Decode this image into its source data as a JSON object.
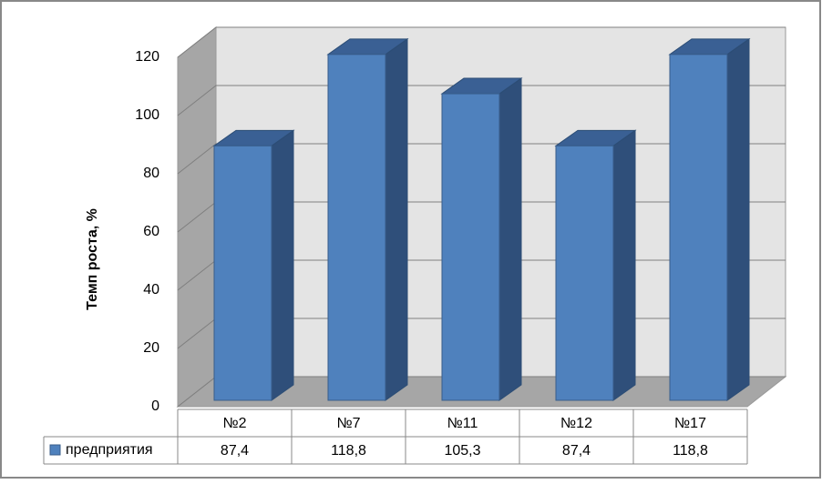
{
  "chart_data": {
    "type": "bar3d",
    "y_axis_label": "Темп роста, %",
    "categories": [
      "№2",
      "№7",
      "№11",
      "№12",
      "№17"
    ],
    "series": [
      {
        "name": "предприятия",
        "color": "#4f81bd",
        "values": [
          87.4,
          118.8,
          105.3,
          87.4,
          118.8
        ],
        "value_labels": [
          "87,4",
          "118,8",
          "105,3",
          "87,4",
          "118,8"
        ]
      }
    ],
    "ylim": [
      0,
      120
    ],
    "yticks": [
      0,
      20,
      40,
      60,
      80,
      100,
      120
    ],
    "grid": true,
    "data_table": true
  }
}
